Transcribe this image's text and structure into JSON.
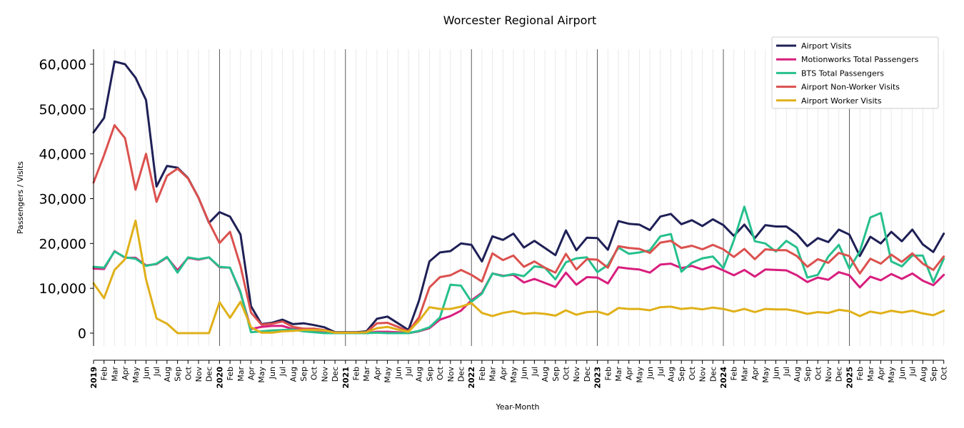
{
  "chart_data": {
    "type": "line",
    "title": "Worcester Regional Airport",
    "xlabel": "Year-Month",
    "ylabel": "Passengers / Visits",
    "ylim": [
      -3000,
      63500
    ],
    "yticks": [
      0,
      10000,
      20000,
      30000,
      40000,
      50000,
      60000
    ],
    "ytick_labels": [
      "0",
      "10,000",
      "20,000",
      "30,000",
      "40,000",
      "50,000",
      "60,000"
    ],
    "x": [
      "2019",
      "Feb",
      "Mar",
      "Apr",
      "May",
      "Jun",
      "Jul",
      "Aug",
      "Sep",
      "Oct",
      "Nov",
      "Dec",
      "2020",
      "Feb",
      "Mar",
      "Apr",
      "May",
      "Jun",
      "Jul",
      "Aug",
      "Sep",
      "Oct",
      "Nov",
      "Dec",
      "2021",
      "Feb",
      "Mar",
      "Apr",
      "May",
      "Jun",
      "Jul",
      "Aug",
      "Sep",
      "Oct",
      "Nov",
      "Dec",
      "2022",
      "Feb",
      "Mar",
      "Apr",
      "May",
      "Jun",
      "Jul",
      "Aug",
      "Sep",
      "Oct",
      "Nov",
      "Dec",
      "2023",
      "Feb",
      "Mar",
      "Apr",
      "May",
      "Jun",
      "Jul",
      "Aug",
      "Sep",
      "Oct",
      "Nov",
      "Dec",
      "2024",
      "Feb",
      "Mar",
      "Apr",
      "May",
      "Jun",
      "Jul",
      "Aug",
      "Sep",
      "Oct",
      "Nov",
      "Dec",
      "2025",
      "Feb",
      "Mar",
      "Apr",
      "May",
      "Jun",
      "Jul",
      "Aug",
      "Sep",
      "Oct"
    ],
    "year_labels": [
      "2019",
      "2020",
      "2021",
      "2022",
      "2023",
      "2024",
      "2025"
    ],
    "grid": "vertical",
    "legend_position": "top-right",
    "series": [
      {
        "name": "Airport Visits",
        "color": "#1f2056",
        "values": [
          44800,
          48000,
          60600,
          60000,
          57000,
          52000,
          32700,
          37300,
          36900,
          34600,
          30200,
          24600,
          27000,
          26000,
          22000,
          6000,
          2000,
          2300,
          3000,
          2000,
          2200,
          1800,
          1300,
          200,
          200,
          200,
          400,
          3200,
          3700,
          2200,
          700,
          7200,
          16000,
          18000,
          18300,
          20000,
          19700,
          16000,
          21600,
          20800,
          22200,
          19100,
          20600,
          19000,
          17400,
          22900,
          18500,
          21300,
          21200,
          18600,
          25000,
          24400,
          24200,
          23000,
          26000,
          26600,
          24300,
          25200,
          23900,
          25400,
          24100,
          21700,
          24200,
          21200,
          24100,
          23800,
          23800,
          22100,
          19400,
          21200,
          20300,
          23100,
          22000,
          17200,
          21500,
          20000,
          22600,
          20500,
          23100,
          19800,
          18100,
          22200
        ]
      },
      {
        "name": "Motionworks Total Passengers",
        "color": "#d81e7e",
        "values": [
          14400,
          14300,
          18300,
          16800,
          16800,
          15100,
          15400,
          16900,
          14000,
          16800,
          16400,
          16900,
          14700,
          14600,
          9000,
          900,
          1400,
          1600,
          1600,
          900,
          700,
          400,
          100,
          0,
          0,
          0,
          0,
          300,
          300,
          200,
          0,
          400,
          1100,
          3000,
          3800,
          5000,
          7300,
          9000,
          13300,
          12800,
          13000,
          11300,
          12100,
          11200,
          10300,
          13500,
          10800,
          12500,
          12400,
          11100,
          14700,
          14400,
          14200,
          13500,
          15300,
          15500,
          14500,
          15000,
          14200,
          15000,
          14000,
          12900,
          14100,
          12600,
          14200,
          14100,
          14000,
          12900,
          11400,
          12400,
          11900,
          13600,
          12900,
          10200,
          12600,
          11800,
          13200,
          12100,
          13300,
          11700,
          10700,
          13000
        ]
      },
      {
        "name": "BTS Total Passengers",
        "color": "#26c08d",
        "values": [
          14800,
          14600,
          18200,
          16900,
          16600,
          15000,
          15500,
          17000,
          13500,
          16900,
          16500,
          16900,
          14800,
          14600,
          9200,
          200,
          400,
          600,
          700,
          800,
          400,
          200,
          0,
          0,
          0,
          0,
          0,
          100,
          0,
          0,
          0,
          500,
          1300,
          3500,
          10800,
          10600,
          7000,
          8800,
          13300,
          12700,
          13200,
          12700,
          14900,
          14600,
          12000,
          15800,
          16700,
          16900,
          13600,
          15200,
          19100,
          17700,
          18000,
          18500,
          21600,
          22100,
          13700,
          15700,
          16700,
          17100,
          14500,
          20700,
          28200,
          20500,
          20000,
          18200,
          20600,
          19100,
          12400,
          13000,
          17100,
          19700,
          14400,
          18200,
          25800,
          26800,
          16000,
          14900,
          17300,
          17300,
          11400,
          16600
        ]
      },
      {
        "name": "Airport Non-Worker Visits",
        "color": "#db514e",
        "values": [
          33600,
          39700,
          46400,
          43500,
          32000,
          40000,
          29300,
          35100,
          36700,
          34500,
          30200,
          24700,
          20100,
          22600,
          15000,
          4600,
          1900,
          2100,
          2600,
          1400,
          1000,
          1000,
          700,
          100,
          100,
          100,
          200,
          2200,
          2300,
          1400,
          400,
          3500,
          10200,
          12500,
          12900,
          14100,
          13000,
          11500,
          17800,
          16300,
          17300,
          14800,
          16000,
          14600,
          13500,
          17700,
          14200,
          16500,
          16400,
          14600,
          19400,
          19000,
          18800,
          17900,
          20200,
          20600,
          19000,
          19500,
          18700,
          19700,
          18700,
          17000,
          18800,
          16500,
          18700,
          18500,
          18500,
          17200,
          14800,
          16500,
          15700,
          17900,
          17200,
          13300,
          16600,
          15500,
          17500,
          15900,
          17800,
          15500,
          14100,
          17100
        ]
      },
      {
        "name": "Airport Worker Visits",
        "color": "#e0b019",
        "values": [
          11100,
          7800,
          14100,
          16500,
          25100,
          12000,
          3300,
          2100,
          0,
          0,
          0,
          0,
          6900,
          3400,
          7000,
          1300,
          100,
          100,
          400,
          500,
          700,
          700,
          600,
          100,
          100,
          100,
          200,
          1100,
          1400,
          800,
          300,
          2700,
          5800,
          5400,
          5400,
          5900,
          6700,
          4500,
          3800,
          4500,
          4900,
          4300,
          4500,
          4300,
          3900,
          5100,
          4100,
          4700,
          4800,
          4100,
          5600,
          5400,
          5400,
          5100,
          5800,
          5900,
          5400,
          5600,
          5300,
          5700,
          5400,
          4800,
          5400,
          4700,
          5400,
          5300,
          5300,
          4900,
          4300,
          4700,
          4500,
          5200,
          4900,
          3800,
          4800,
          4400,
          5000,
          4600,
          5000,
          4400,
          4000,
          5000
        ]
      }
    ]
  }
}
